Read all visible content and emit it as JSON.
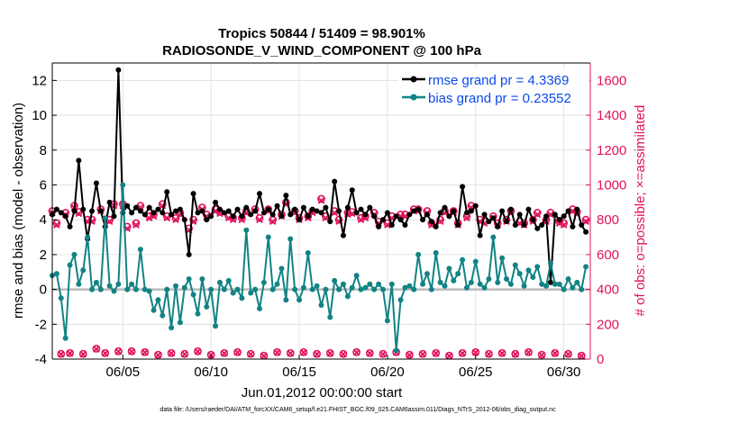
{
  "chart_data": {
    "type": "line",
    "title": "Tropics 50844 / 51409 = 98.901%",
    "subtitle": "RADIOSONDE_V_WIND_COMPONENT @ 100 hPa",
    "xlabel": "Jun.01,2012 00:00:00 start",
    "ylabel_left": "rmse and bias (model - observation)",
    "ylabel_right": "# of obs: o=possible; ×=assimilated",
    "footnote": "data file: /Users/raeder/DAI/ATM_forcXX/CAM6_setup/f.e21.FHIST_BGC.f09_025.CAM6assim.011/Diags_NTrS_2012-06/obs_diag_output.nc",
    "xlim": [
      1,
      31.5
    ],
    "ylim_left": [
      -4,
      13
    ],
    "ylim_right": [
      0,
      1700
    ],
    "x_ticks": [
      5,
      10,
      15,
      20,
      25,
      30
    ],
    "x_tick_labels": [
      "06/05",
      "06/10",
      "06/15",
      "06/20",
      "06/25",
      "06/30"
    ],
    "y_left_ticks": [
      -4,
      -2,
      0,
      2,
      4,
      6,
      8,
      10,
      12
    ],
    "y_left_tick_labels": [
      "-4",
      "-2",
      "0",
      "2",
      "4",
      "6",
      "8",
      "10",
      "12"
    ],
    "y_right_ticks": [
      0,
      200,
      400,
      600,
      800,
      1000,
      1200,
      1400,
      1600
    ],
    "y_right_tick_labels": [
      "0",
      "200",
      "400",
      "600",
      "800",
      "1000",
      "1200",
      "1400",
      "1600"
    ],
    "grid": true,
    "legend_position": "top-right",
    "x": [
      1.0,
      1.25,
      1.5,
      1.75,
      2.0,
      2.25,
      2.5,
      2.75,
      3.0,
      3.25,
      3.5,
      3.75,
      4.0,
      4.25,
      4.5,
      4.75,
      5.0,
      5.25,
      5.5,
      5.75,
      6.0,
      6.25,
      6.5,
      6.75,
      7.0,
      7.25,
      7.5,
      7.75,
      8.0,
      8.25,
      8.5,
      8.75,
      9.0,
      9.25,
      9.5,
      9.75,
      10.0,
      10.25,
      10.5,
      10.75,
      11.0,
      11.25,
      11.5,
      11.75,
      12.0,
      12.25,
      12.5,
      12.75,
      13.0,
      13.25,
      13.5,
      13.75,
      14.0,
      14.25,
      14.5,
      14.75,
      15.0,
      15.25,
      15.5,
      15.75,
      16.0,
      16.25,
      16.5,
      16.75,
      17.0,
      17.25,
      17.5,
      17.75,
      18.0,
      18.25,
      18.5,
      18.75,
      19.0,
      19.25,
      19.5,
      19.75,
      20.0,
      20.25,
      20.5,
      20.75,
      21.0,
      21.25,
      21.5,
      21.75,
      22.0,
      22.25,
      22.5,
      22.75,
      23.0,
      23.25,
      23.5,
      23.75,
      24.0,
      24.25,
      24.5,
      24.75,
      25.0,
      25.25,
      25.5,
      25.75,
      26.0,
      26.25,
      26.5,
      26.75,
      27.0,
      27.25,
      27.5,
      27.75,
      28.0,
      28.25,
      28.5,
      28.75,
      29.0,
      29.25,
      29.5,
      29.75,
      30.0,
      30.25,
      30.5,
      30.75,
      31.0,
      31.25
    ],
    "series": [
      {
        "name": "rmse grand pr = 4.3369",
        "axis": "left",
        "color": "#000000",
        "values": [
          4.3,
          4.6,
          4.4,
          4.2,
          3.6,
          4.5,
          7.4,
          4.6,
          2.9,
          4.5,
          6.1,
          4.5,
          3.6,
          5.0,
          4.2,
          12.6,
          4.4,
          4.8,
          4.4,
          4.7,
          4.5,
          4.3,
          4.7,
          4.4,
          4.6,
          4.4,
          5.6,
          4.3,
          4.5,
          4.6,
          4.0,
          2.0,
          5.5,
          4.4,
          4.5,
          4.0,
          4.2,
          5.0,
          4.6,
          4.4,
          4.5,
          4.2,
          4.6,
          4.2,
          4.7,
          4.3,
          4.5,
          5.5,
          4.4,
          4.6,
          4.3,
          4.8,
          4.2,
          5.4,
          4.3,
          4.6,
          4.0,
          4.7,
          4.2,
          4.6,
          4.5,
          4.4,
          4.7,
          3.9,
          6.2,
          4.5,
          3.1,
          4.7,
          5.7,
          4.4,
          4.6,
          4.3,
          4.7,
          4.2,
          3.6,
          4.0,
          4.4,
          3.7,
          4.2,
          4.0,
          3.7,
          4.3,
          4.5,
          4.6,
          4.0,
          4.3,
          3.9,
          3.6,
          4.4,
          4.7,
          4.2,
          4.5,
          3.7,
          5.9,
          4.4,
          4.5,
          4.8,
          3.1,
          4.3,
          3.9,
          4.1,
          3.6,
          4.5,
          3.9,
          4.6,
          3.7,
          4.3,
          3.7,
          4.6,
          4.0,
          3.5,
          3.7,
          4.2,
          0.4,
          4.3,
          4.0,
          4.2,
          4.5,
          3.6,
          4.6,
          3.7,
          3.3
        ]
      },
      {
        "name": "bias grand pr = 0.23552",
        "axis": "left",
        "color": "#128384",
        "values": [
          0.8,
          0.9,
          -0.5,
          -2.8,
          1.4,
          2.0,
          0.3,
          1.1,
          3.0,
          0.0,
          0.4,
          0.0,
          4.1,
          0.2,
          -0.1,
          0.3,
          6.0,
          0.0,
          0.3,
          0.0,
          2.3,
          0.0,
          -0.1,
          -1.2,
          -0.6,
          -1.5,
          0.0,
          -2.2,
          0.2,
          -1.9,
          0.1,
          0.6,
          -0.3,
          -1.4,
          0.6,
          -1.0,
          0.0,
          -2.1,
          0.4,
          0.0,
          0.5,
          -0.2,
          0.0,
          -0.5,
          3.4,
          -0.2,
          0.0,
          -1.1,
          0.4,
          3.0,
          0.0,
          0.3,
          1.2,
          -0.6,
          2.9,
          0.0,
          -0.6,
          0.1,
          2.1,
          0.0,
          0.2,
          -0.9,
          0.0,
          -1.6,
          0.5,
          0.0,
          0.3,
          -0.4,
          0.1,
          0.8,
          0.0,
          0.1,
          0.3,
          0.0,
          0.3,
          0.0,
          -1.8,
          0.3,
          -3.5,
          -0.6,
          0.1,
          0.2,
          0.0,
          2.0,
          0.3,
          0.9,
          0.0,
          2.1,
          0.4,
          0.2,
          1.2,
          0.5,
          0.9,
          1.7,
          0.1,
          0.4,
          1.6,
          0.3,
          0.1,
          0.6,
          3.0,
          0.4,
          1.8,
          0.6,
          0.3,
          1.4,
          0.9,
          0.2,
          1.1,
          0.7,
          1.3,
          0.3,
          0.2,
          1.5,
          0.3,
          0.3,
          0.0,
          0.6,
          0.1,
          0.4,
          0.0,
          1.3
        ]
      },
      {
        "name": "possible",
        "axis": "right",
        "color": "#e0125e",
        "values": [
          850,
          780,
          30,
          840,
          35,
          880,
          845,
          30,
          800,
          800,
          60,
          860,
          35,
          800,
          890,
          45,
          890,
          760,
          45,
          780,
          880,
          40,
          820,
          830,
          25,
          890,
          820,
          35,
          810,
          840,
          30,
          750,
          800,
          45,
          870,
          830,
          25,
          860,
          845,
          35,
          820,
          810,
          40,
          810,
          850,
          30,
          860,
          810,
          20,
          860,
          800,
          40,
          830,
          900,
          35,
          850,
          810,
          40,
          820,
          850,
          30,
          920,
          820,
          35,
          850,
          800,
          30,
          840,
          845,
          40,
          810,
          820,
          35,
          840,
          790,
          30,
          780,
          820,
          40,
          830,
          830,
          25,
          860,
          860,
          30,
          850,
          780,
          35,
          800,
          850,
          20,
          850,
          780,
          35,
          820,
          880,
          40,
          800,
          790,
          30,
          820,
          780,
          35,
          800,
          850,
          30,
          790,
          780,
          40,
          800,
          840,
          25,
          800,
          840,
          35,
          790,
          780,
          30,
          860,
          845,
          20,
          800
        ]
      },
      {
        "name": "assimilated",
        "axis": "right",
        "color": "#e0125e",
        "values": [
          840,
          770,
          28,
          830,
          33,
          870,
          835,
          28,
          790,
          790,
          58,
          850,
          33,
          790,
          880,
          43,
          880,
          750,
          43,
          770,
          870,
          38,
          810,
          820,
          23,
          880,
          810,
          33,
          800,
          830,
          28,
          740,
          790,
          43,
          860,
          820,
          23,
          850,
          835,
          33,
          810,
          800,
          38,
          800,
          840,
          28,
          850,
          800,
          18,
          850,
          790,
          38,
          820,
          890,
          33,
          840,
          800,
          38,
          810,
          840,
          28,
          910,
          810,
          33,
          840,
          790,
          28,
          830,
          835,
          38,
          800,
          810,
          33,
          830,
          780,
          28,
          770,
          810,
          38,
          820,
          820,
          23,
          850,
          850,
          28,
          840,
          770,
          33,
          790,
          840,
          18,
          840,
          770,
          33,
          810,
          870,
          38,
          790,
          780,
          28,
          810,
          770,
          33,
          790,
          840,
          28,
          780,
          770,
          38,
          790,
          830,
          23,
          790,
          830,
          33,
          780,
          770,
          28,
          850,
          835,
          18,
          790
        ]
      }
    ],
    "zero_line_color": "#bbbbbb"
  }
}
